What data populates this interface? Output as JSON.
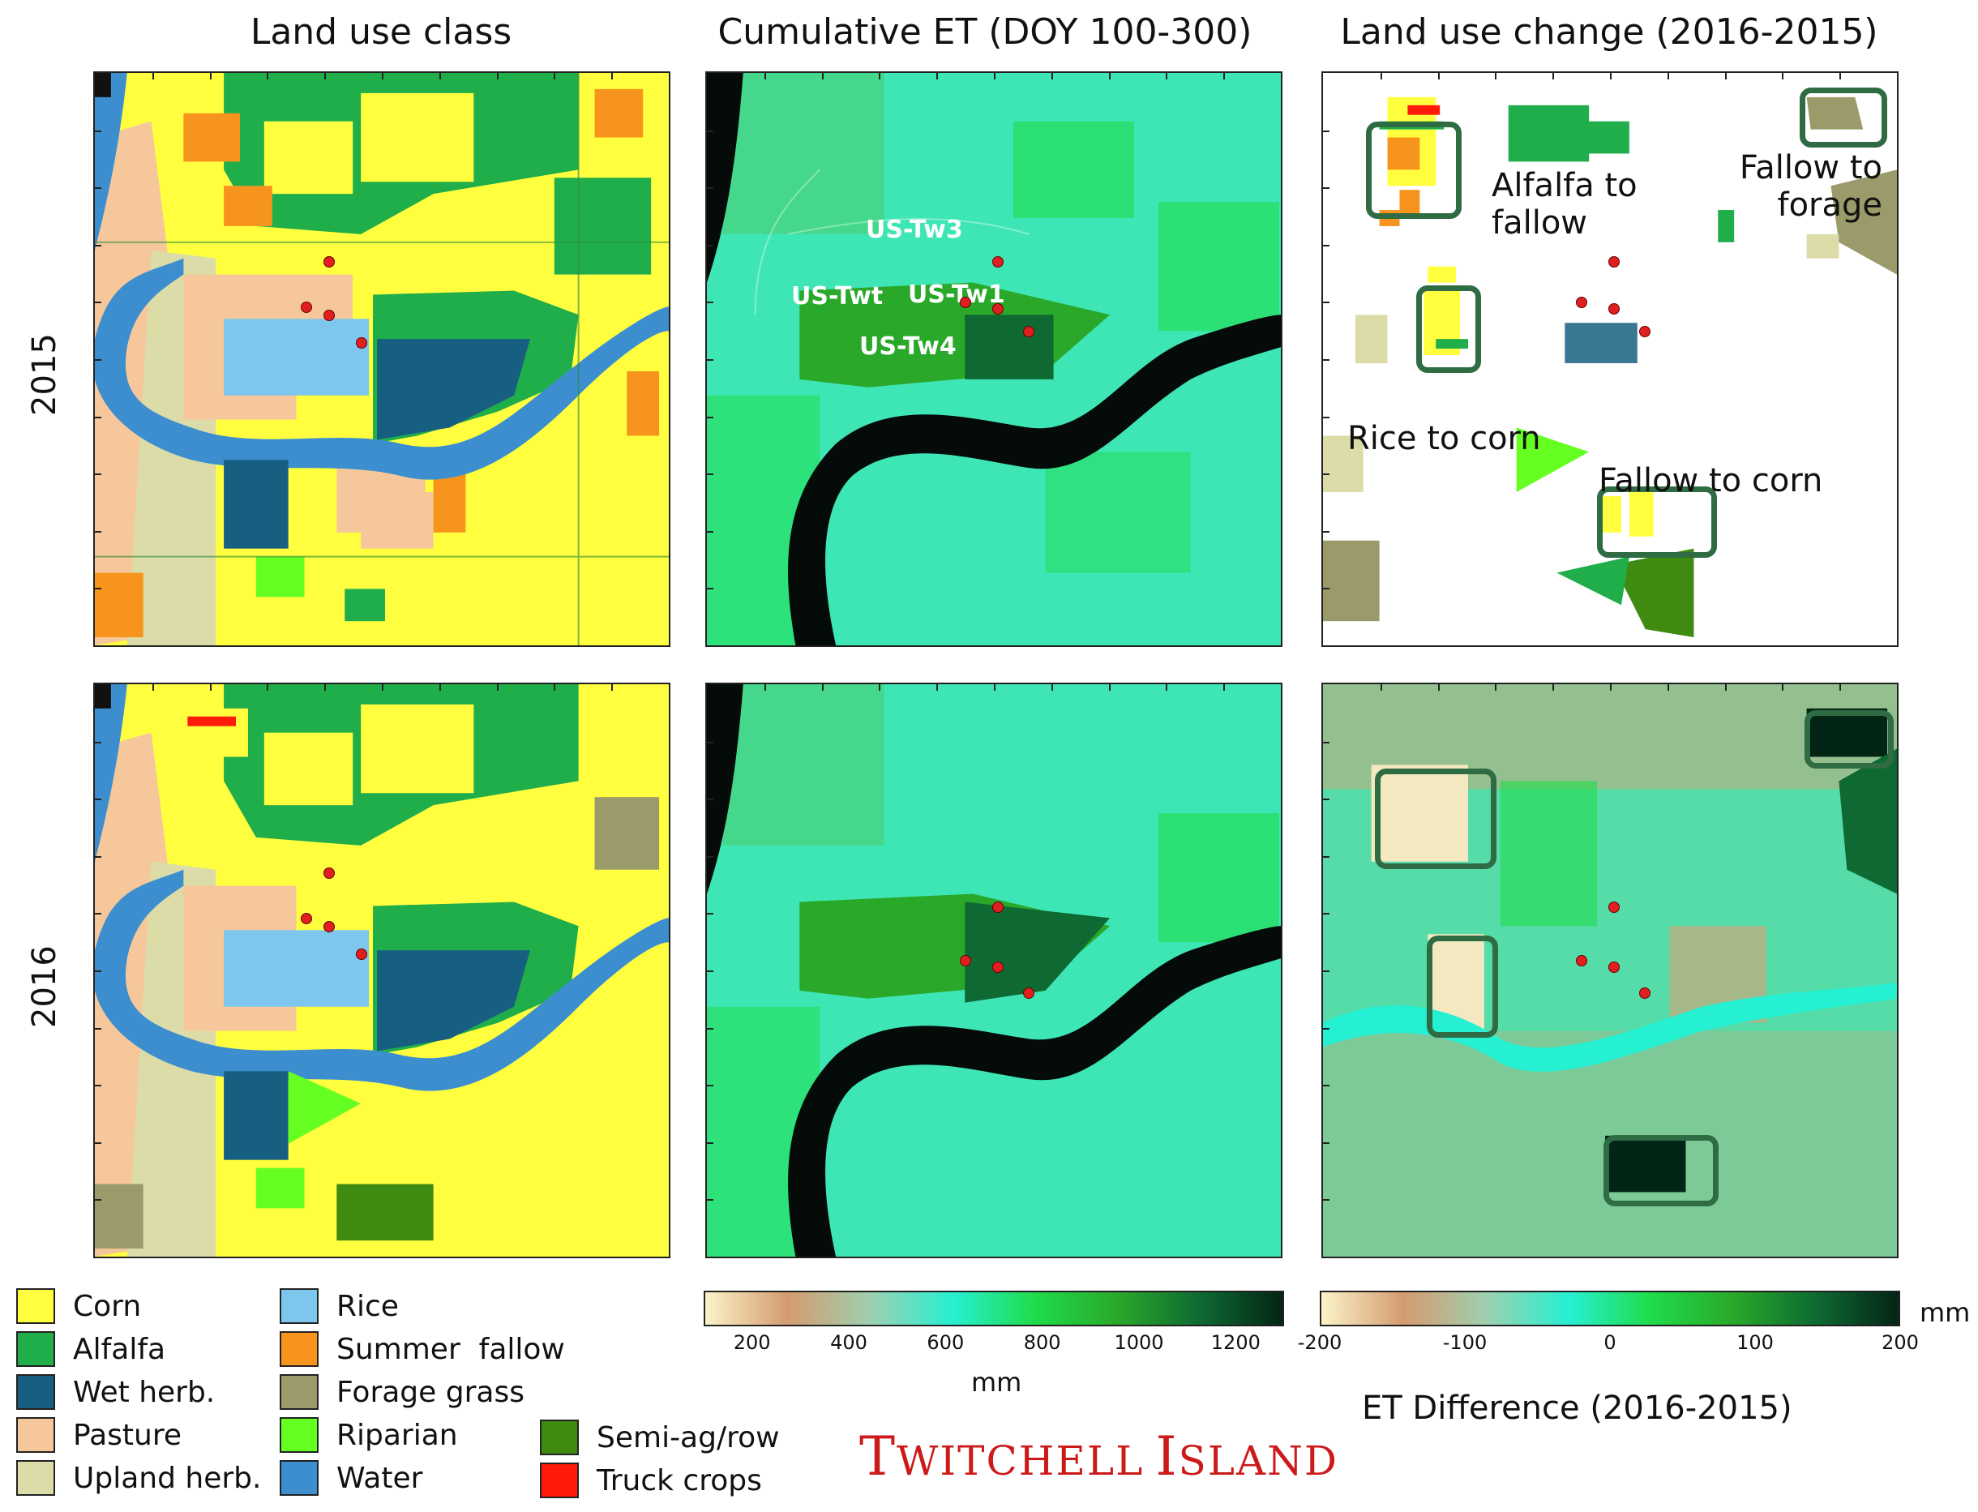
{
  "columns": [
    "Land use class",
    "Cumulative ET (DOY 100-300)",
    "Land use change (2016-2015)"
  ],
  "rows": [
    "2015",
    "2016"
  ],
  "sites": [
    "US-Tw3",
    "US-Twt",
    "US-Tw1",
    "US-Tw4"
  ],
  "annotations": [
    "Alfalfa to fallow",
    "Fallow to forage",
    "Rice to corn",
    "Fallow to corn"
  ],
  "annotation_lines": {
    "alfalfa_to_fallow": [
      "Alfalfa to",
      "fallow"
    ],
    "fallow_to_forage": [
      "Fallow to",
      "forage"
    ],
    "rice_to_corn": [
      "Rice to corn"
    ],
    "fallow_to_corn": [
      "Fallow to corn"
    ]
  },
  "legend": [
    {
      "label": "Corn",
      "color": "#ffff40"
    },
    {
      "label": "Alfalfa",
      "color": "#1fae4a"
    },
    {
      "label": "Wet herb.",
      "color": "#175f80"
    },
    {
      "label": "Pasture",
      "color": "#f6c79a"
    },
    {
      "label": "Upland herb.",
      "color": "#dcdca8"
    },
    {
      "label": "Rice",
      "color": "#7dc6ee"
    },
    {
      "label": "Summer  fallow",
      "color": "#f7941d"
    },
    {
      "label": "Forage grass",
      "color": "#9a9a6a"
    },
    {
      "label": "Riparian",
      "color": "#66ff22"
    },
    {
      "label": "Water",
      "color": "#3c8ecf"
    },
    {
      "label": "Semi-ag/row",
      "color": "#3f8a10"
    },
    {
      "label": "Truck crops",
      "color": "#ff1a0a"
    }
  ],
  "et_colorbar": {
    "ticks": [
      "200",
      "400",
      "600",
      "800",
      "1000",
      "1200"
    ],
    "tick_values": [
      200,
      400,
      600,
      800,
      1000,
      1200
    ],
    "range": [
      100,
      1300
    ],
    "unit": "mm",
    "colors": [
      "#fbf3c8",
      "#d59b70",
      "#9ed0b0",
      "#26f0d2",
      "#1fdc4a",
      "#2aa82a",
      "#0e6a32",
      "#032515"
    ]
  },
  "diff_colorbar": {
    "ticks": [
      "-200",
      "-100",
      "0",
      "100",
      "200"
    ],
    "tick_values": [
      -200,
      -100,
      0,
      100,
      200
    ],
    "range": [
      -200,
      200
    ],
    "unit": "mm",
    "title": "ET Difference (2016-2015)",
    "colors": [
      "#fbf3c8",
      "#d59b70",
      "#9ed0b0",
      "#26f0d2",
      "#1fdc4a",
      "#2aa82a",
      "#0e6a32",
      "#032515"
    ]
  },
  "place": {
    "first": "Twitchell",
    "second": "Island"
  }
}
